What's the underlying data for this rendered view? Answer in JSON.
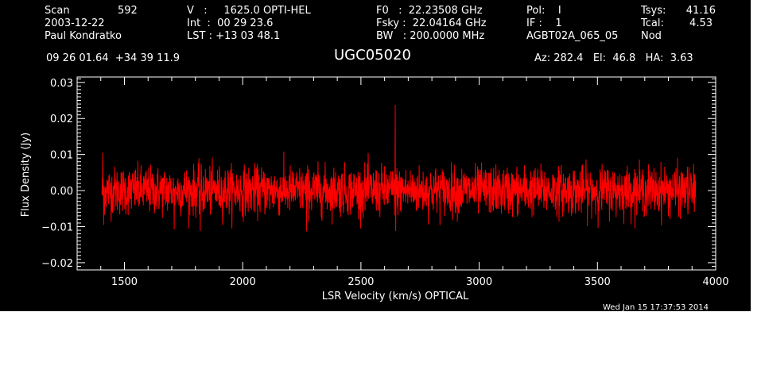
{
  "header": {
    "col1": {
      "scan_label": "Scan",
      "scan_value": "592",
      "date": "2003-12-22",
      "observer": "Paul Kondratko"
    },
    "col2": {
      "line_v": "V   :     1625.0 OPTI-HEL",
      "line_int": "Int  :  00 29 23.6",
      "line_lst": "LST : +13 03 48.1"
    },
    "col3": {
      "line_f0": "F0   :  22.23508 GHz",
      "line_fsky": "Fsky :  22.04164 GHz",
      "line_bw": "BW   : 200.0000 MHz"
    },
    "col4": {
      "line_pol": "Pol:    I",
      "line_if": "IF :    1",
      "proc": "AGBT02A_065_05"
    },
    "col5": {
      "tsys_label": "Tsys:",
      "tsys_value": "41.16",
      "tcal_label": "Tcal:",
      "tcal_value": "4.53",
      "mode": "Nod"
    },
    "coords": "09 26 01.64  +34 39 11.9",
    "source": "UGC05020",
    "az_el_ha": "Az: 282.4   El:  46.8   HA:  3.63",
    "timestamp": "Wed Jan 15 17:37:53 2014"
  },
  "chart_data": {
    "type": "line",
    "title": "UGC05020",
    "xlabel": "LSR Velocity (km/s) OPTICAL",
    "ylabel": "Flux Density (Jy)",
    "xlim": [
      1300,
      4000
    ],
    "ylim": [
      -0.022,
      0.0315
    ],
    "x_ticks": [
      1500,
      2000,
      2500,
      3000,
      3500,
      4000
    ],
    "x_tick_labels": [
      "1500",
      "2000",
      "2500",
      "3000",
      "3500",
      "4000"
    ],
    "y_ticks": [
      -0.02,
      -0.01,
      0.0,
      0.01,
      0.02,
      0.03
    ],
    "y_tick_labels": [
      "−0.02",
      "−0.01",
      "0.00",
      "0.01",
      "0.02",
      "0.03"
    ],
    "grid": false,
    "series": [
      {
        "color": "#ff0000",
        "x_start": 1405,
        "x_end": 3915,
        "baseline": 0.0,
        "noise_rms": 0.0033,
        "spikes": [
          {
            "x": 2645,
            "y": 0.0238
          },
          {
            "x": 2647,
            "y": -0.0112
          },
          {
            "x": 1408,
            "y": 0.0105
          },
          {
            "x": 1412,
            "y": -0.0095
          },
          {
            "x": 1710,
            "y": -0.0108
          },
          {
            "x": 1820,
            "y": -0.0112
          },
          {
            "x": 2270,
            "y": -0.0113
          }
        ]
      }
    ]
  }
}
